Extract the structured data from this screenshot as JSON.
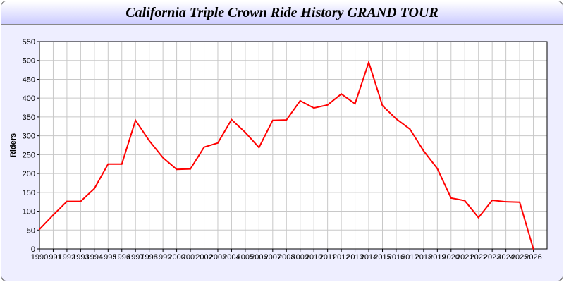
{
  "chart_data": {
    "type": "line",
    "title": "California Triple Crown Ride History GRAND TOUR",
    "xlabel": "",
    "ylabel": "Riders",
    "ylim": [
      0,
      550
    ],
    "yticks": [
      0,
      50,
      100,
      150,
      200,
      250,
      300,
      350,
      400,
      450,
      500,
      550
    ],
    "xlim": [
      1990,
      2027
    ],
    "grid": true,
    "x": [
      1990,
      1991,
      1992,
      1993,
      1994,
      1995,
      1996,
      1997,
      1998,
      1999,
      2000,
      2001,
      2002,
      2003,
      2004,
      2005,
      2006,
      2007,
      2008,
      2009,
      2010,
      2011,
      2012,
      2013,
      2014,
      2015,
      2016,
      2017,
      2018,
      2019,
      2020,
      2021,
      2022,
      2023,
      2024,
      2025,
      2026
    ],
    "series": [
      {
        "color": "#ff0000",
        "values": [
          52,
          90,
          126,
          126,
          160,
          225,
          225,
          341,
          287,
          242,
          211,
          212,
          270,
          281,
          343,
          309,
          269,
          341,
          342,
          393,
          374,
          382,
          411,
          385,
          495,
          380,
          345,
          318,
          260,
          213,
          135,
          128,
          83,
          129,
          125,
          124,
          0
        ]
      }
    ]
  }
}
